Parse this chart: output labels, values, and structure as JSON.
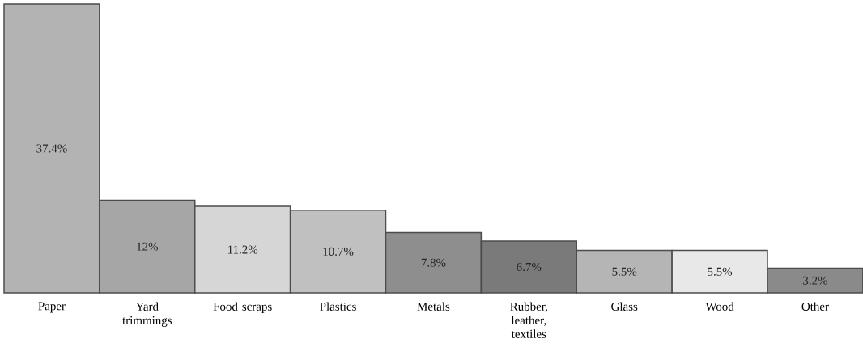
{
  "chart_data": {
    "type": "bar",
    "categories": [
      "Paper",
      "Yard trimmings",
      "Food scraps",
      "Plastics",
      "Metals",
      "Rubber, leather, textiles",
      "Glass",
      "Wood",
      "Other"
    ],
    "values": [
      37.4,
      12,
      11.2,
      10.7,
      7.8,
      6.7,
      5.5,
      5.5,
      3.2
    ],
    "colors": [
      "#b3b3b3",
      "#a6a6a6",
      "#d6d6d6",
      "#c0c0c0",
      "#8e8e8e",
      "#7a7a7a",
      "#b5b5b5",
      "#e8e8e8",
      "#8a8a8a"
    ],
    "value_labels": [
      "37.4%",
      "12%",
      "11.2%",
      "10.7%",
      "7.8%",
      "6.7%",
      "5.5%",
      "5.5%",
      "3.2%"
    ]
  }
}
